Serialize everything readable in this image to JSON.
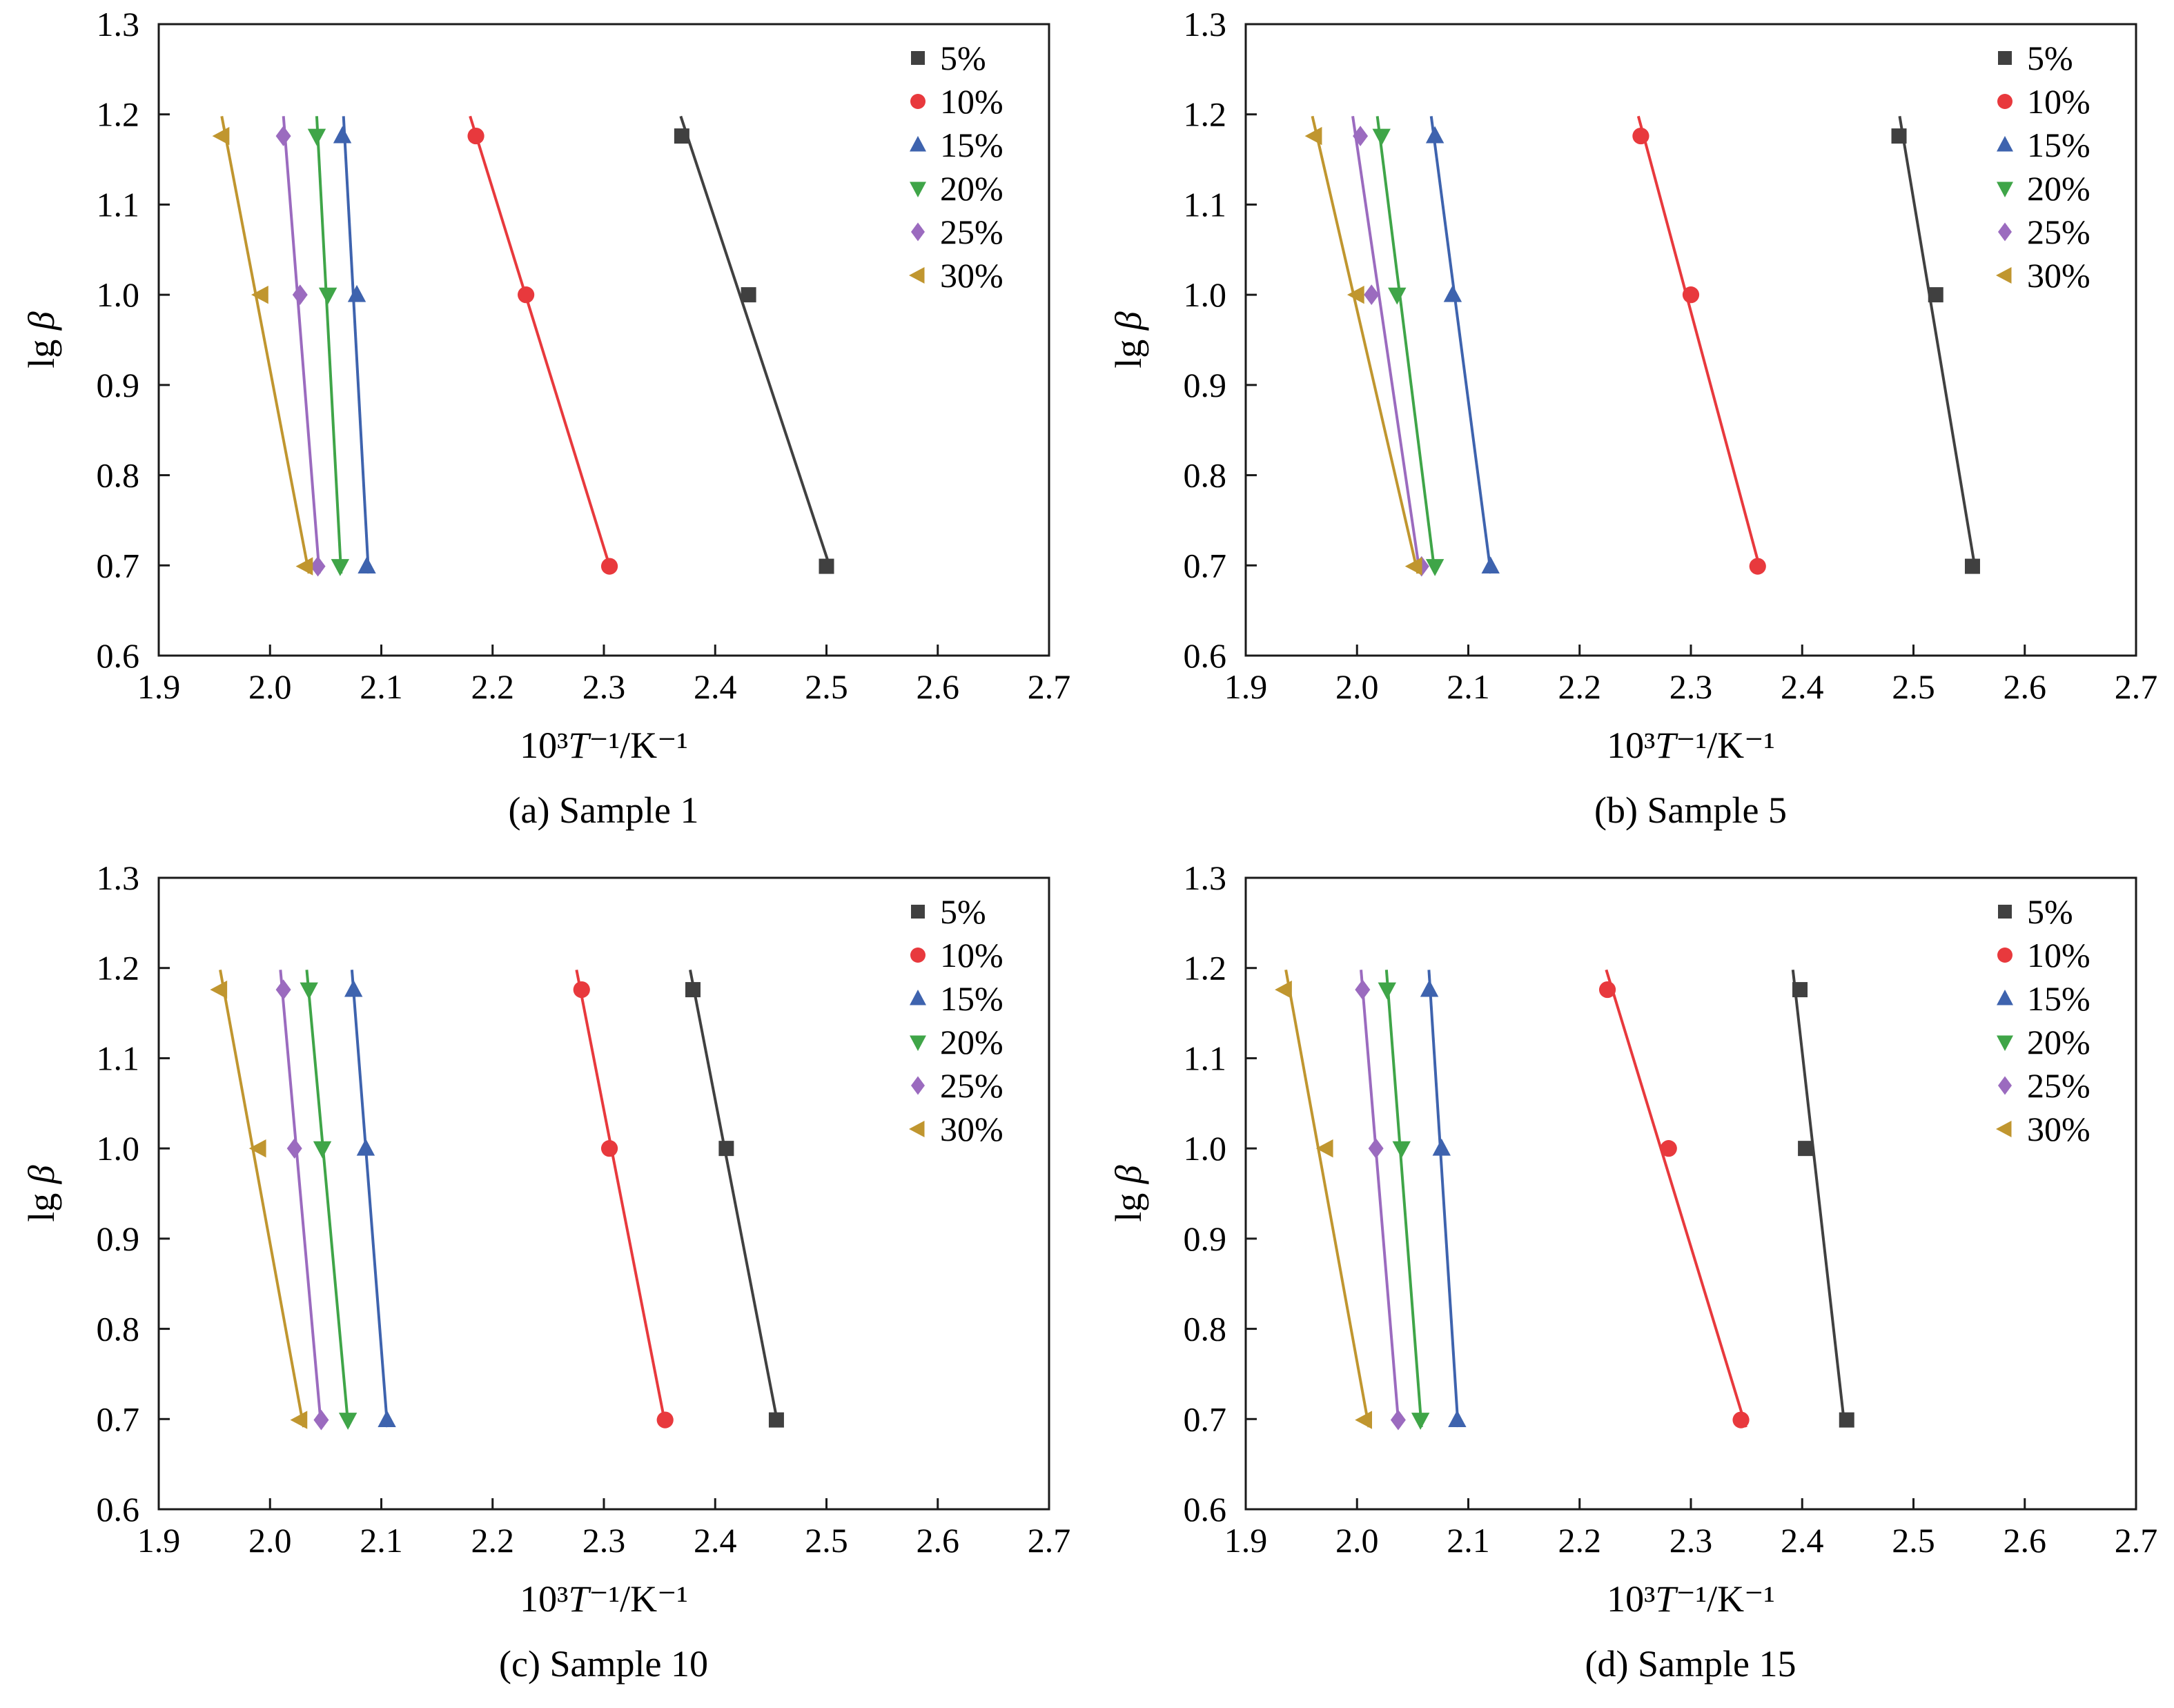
{
  "figure": {
    "background": "#ffffff",
    "axis_color": "#1a1a1a",
    "legend_labels": [
      "5%",
      "10%",
      "15%",
      "20%",
      "25%",
      "30%"
    ]
  },
  "chart_data": [
    {
      "type": "scatter",
      "title": "(a) Sample 1",
      "xlabel": "10³T⁻¹/K⁻¹",
      "ylabel": "lg β",
      "xlim": [
        1.9,
        2.7
      ],
      "ylim": [
        0.6,
        1.3
      ],
      "xticks": [
        1.9,
        2.0,
        2.1,
        2.2,
        2.3,
        2.4,
        2.5,
        2.6,
        2.7
      ],
      "yticks": [
        0.6,
        0.7,
        0.8,
        0.9,
        1.0,
        1.1,
        1.2,
        1.3
      ],
      "grid": false,
      "legend_position": "top-right",
      "series": [
        {
          "name": "5%",
          "color": "#404040",
          "marker": "square",
          "points": [
            [
              2.37,
              1.176
            ],
            [
              2.43,
              1.0
            ],
            [
              2.5,
              0.699
            ]
          ]
        },
        {
          "name": "10%",
          "color": "#e8393d",
          "marker": "circle",
          "points": [
            [
              2.185,
              1.176
            ],
            [
              2.23,
              1.0
            ],
            [
              2.305,
              0.699
            ]
          ]
        },
        {
          "name": "15%",
          "color": "#3e63ae",
          "marker": "triangle-up",
          "points": [
            [
              2.065,
              1.176
            ],
            [
              2.078,
              1.0
            ],
            [
              2.087,
              0.699
            ]
          ]
        },
        {
          "name": "20%",
          "color": "#3fa548",
          "marker": "triangle-down",
          "points": [
            [
              2.042,
              1.176
            ],
            [
              2.052,
              1.0
            ],
            [
              2.063,
              0.699
            ]
          ]
        },
        {
          "name": "25%",
          "color": "#9b6bbf",
          "marker": "diamond",
          "points": [
            [
              2.012,
              1.176
            ],
            [
              2.027,
              1.0
            ],
            [
              2.043,
              0.699
            ]
          ]
        },
        {
          "name": "30%",
          "color": "#c0962f",
          "marker": "triangle-left",
          "points": [
            [
              1.957,
              1.176
            ],
            [
              1.992,
              1.0
            ],
            [
              2.032,
              0.699
            ]
          ]
        }
      ]
    },
    {
      "type": "scatter",
      "title": "(b) Sample 5",
      "xlabel": "10³T⁻¹/K⁻¹",
      "ylabel": "lg β",
      "xlim": [
        1.9,
        2.7
      ],
      "ylim": [
        0.6,
        1.3
      ],
      "xticks": [
        1.9,
        2.0,
        2.1,
        2.2,
        2.3,
        2.4,
        2.5,
        2.6,
        2.7
      ],
      "yticks": [
        0.6,
        0.7,
        0.8,
        0.9,
        1.0,
        1.1,
        1.2,
        1.3
      ],
      "grid": false,
      "legend_position": "top-right",
      "series": [
        {
          "name": "5%",
          "color": "#404040",
          "marker": "square",
          "points": [
            [
              2.487,
              1.176
            ],
            [
              2.52,
              1.0
            ],
            [
              2.553,
              0.699
            ]
          ]
        },
        {
          "name": "10%",
          "color": "#e8393d",
          "marker": "circle",
          "points": [
            [
              2.255,
              1.176
            ],
            [
              2.3,
              1.0
            ],
            [
              2.36,
              0.699
            ]
          ]
        },
        {
          "name": "15%",
          "color": "#3e63ae",
          "marker": "triangle-up",
          "points": [
            [
              2.07,
              1.176
            ],
            [
              2.086,
              1.0
            ],
            [
              2.12,
              0.699
            ]
          ]
        },
        {
          "name": "20%",
          "color": "#3fa548",
          "marker": "triangle-down",
          "points": [
            [
              2.022,
              1.176
            ],
            [
              2.036,
              1.0
            ],
            [
              2.07,
              0.699
            ]
          ]
        },
        {
          "name": "25%",
          "color": "#9b6bbf",
          "marker": "diamond",
          "points": [
            [
              2.003,
              1.176
            ],
            [
              2.013,
              1.0
            ],
            [
              2.058,
              0.699
            ]
          ]
        },
        {
          "name": "30%",
          "color": "#c0962f",
          "marker": "triangle-left",
          "points": [
            [
              1.962,
              1.176
            ],
            [
              2.0,
              1.0
            ],
            [
              2.052,
              0.699
            ]
          ]
        }
      ]
    },
    {
      "type": "scatter",
      "title": "(c) Sample 10",
      "xlabel": "10³T⁻¹/K⁻¹",
      "ylabel": "lg β",
      "xlim": [
        1.9,
        2.7
      ],
      "ylim": [
        0.6,
        1.3
      ],
      "xticks": [
        1.9,
        2.0,
        2.1,
        2.2,
        2.3,
        2.4,
        2.5,
        2.6,
        2.7
      ],
      "yticks": [
        0.6,
        0.7,
        0.8,
        0.9,
        1.0,
        1.1,
        1.2,
        1.3
      ],
      "grid": false,
      "legend_position": "top-right",
      "series": [
        {
          "name": "5%",
          "color": "#404040",
          "marker": "square",
          "points": [
            [
              2.38,
              1.176
            ],
            [
              2.41,
              1.0
            ],
            [
              2.455,
              0.699
            ]
          ]
        },
        {
          "name": "10%",
          "color": "#e8393d",
          "marker": "circle",
          "points": [
            [
              2.28,
              1.176
            ],
            [
              2.305,
              1.0
            ],
            [
              2.355,
              0.699
            ]
          ]
        },
        {
          "name": "15%",
          "color": "#3e63ae",
          "marker": "triangle-up",
          "points": [
            [
              2.075,
              1.176
            ],
            [
              2.086,
              1.0
            ],
            [
              2.105,
              0.699
            ]
          ]
        },
        {
          "name": "20%",
          "color": "#3fa548",
          "marker": "triangle-down",
          "points": [
            [
              2.035,
              1.176
            ],
            [
              2.047,
              1.0
            ],
            [
              2.07,
              0.699
            ]
          ]
        },
        {
          "name": "25%",
          "color": "#9b6bbf",
          "marker": "diamond",
          "points": [
            [
              2.012,
              1.176
            ],
            [
              2.022,
              1.0
            ],
            [
              2.046,
              0.699
            ]
          ]
        },
        {
          "name": "30%",
          "color": "#c0962f",
          "marker": "triangle-left",
          "points": [
            [
              1.955,
              1.176
            ],
            [
              1.99,
              1.0
            ],
            [
              2.027,
              0.699
            ]
          ]
        }
      ]
    },
    {
      "type": "scatter",
      "title": "(d) Sample 15",
      "xlabel": "10³T⁻¹/K⁻¹",
      "ylabel": "lg β",
      "xlim": [
        1.9,
        2.7
      ],
      "ylim": [
        0.6,
        1.3
      ],
      "xticks": [
        1.9,
        2.0,
        2.1,
        2.2,
        2.3,
        2.4,
        2.5,
        2.6,
        2.7
      ],
      "yticks": [
        0.6,
        0.7,
        0.8,
        0.9,
        1.0,
        1.1,
        1.2,
        1.3
      ],
      "grid": false,
      "legend_position": "top-right",
      "series": [
        {
          "name": "5%",
          "color": "#404040",
          "marker": "square",
          "points": [
            [
              2.398,
              1.176
            ],
            [
              2.403,
              1.0
            ],
            [
              2.44,
              0.699
            ]
          ]
        },
        {
          "name": "10%",
          "color": "#e8393d",
          "marker": "circle",
          "points": [
            [
              2.225,
              1.176
            ],
            [
              2.28,
              1.0
            ],
            [
              2.345,
              0.699
            ]
          ]
        },
        {
          "name": "15%",
          "color": "#3e63ae",
          "marker": "triangle-up",
          "points": [
            [
              2.065,
              1.176
            ],
            [
              2.076,
              1.0
            ],
            [
              2.09,
              0.699
            ]
          ]
        },
        {
          "name": "20%",
          "color": "#3fa548",
          "marker": "triangle-down",
          "points": [
            [
              2.027,
              1.176
            ],
            [
              2.04,
              1.0
            ],
            [
              2.057,
              0.699
            ]
          ]
        },
        {
          "name": "25%",
          "color": "#9b6bbf",
          "marker": "diamond",
          "points": [
            [
              2.005,
              1.176
            ],
            [
              2.017,
              1.0
            ],
            [
              2.037,
              0.699
            ]
          ]
        },
        {
          "name": "30%",
          "color": "#c0962f",
          "marker": "triangle-left",
          "points": [
            [
              1.935,
              1.176
            ],
            [
              1.972,
              1.0
            ],
            [
              2.007,
              0.699
            ]
          ]
        }
      ]
    }
  ]
}
